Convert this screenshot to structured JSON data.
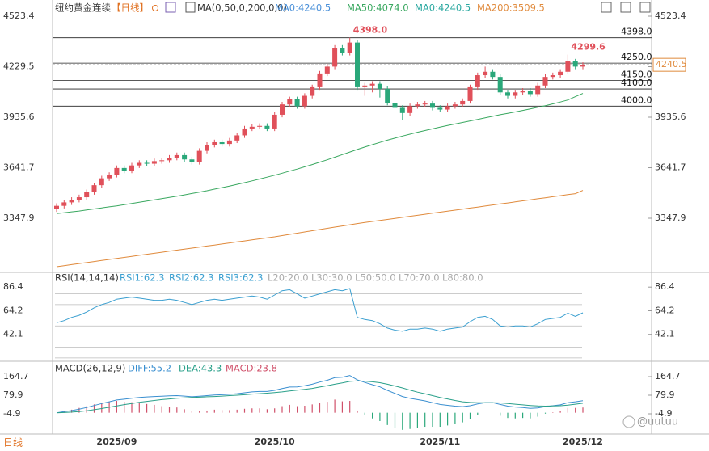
{
  "chart_data": {
    "type": "candlestick",
    "title": "纽约黄金连续",
    "period_tag": "【日线】",
    "indicator": "MA(0,50,0,200,0,0)",
    "header_items": [
      {
        "name": "MA0:4240.5",
        "color": "#4a90d9"
      },
      {
        "name": "MA0:4240.5",
        "color": "#2aa8a0"
      }
    ],
    "period_label": "日线",
    "watermark": "@uutuu",
    "up_color": "#e0505a",
    "down_color": "#2aa87a",
    "categories": [
      null,
      null,
      null,
      null,
      null,
      null,
      null,
      null,
      "2025/09",
      null,
      null,
      null,
      null,
      null,
      null,
      null,
      null,
      null,
      null,
      null,
      null,
      null,
      null,
      null,
      null,
      null,
      null,
      null,
      null,
      "2025/10",
      null,
      null,
      null,
      null,
      null,
      null,
      null,
      null,
      null,
      null,
      null,
      null,
      null,
      null,
      null,
      null,
      null,
      null,
      null,
      null,
      null,
      "2025/11",
      null,
      null,
      null,
      null,
      null,
      null,
      null,
      null,
      null,
      null,
      null,
      null,
      null,
      null,
      null,
      null,
      null,
      null,
      "2025/12"
    ],
    "open": [
      3400,
      3420,
      3440,
      3455,
      3470,
      3500,
      3540,
      3580,
      3600,
      3640,
      3625,
      3655,
      3670,
      3665,
      3680,
      3685,
      3700,
      3715,
      3690,
      3675,
      3740,
      3775,
      3790,
      3780,
      3800,
      3830,
      3870,
      3880,
      3885,
      3870,
      3950,
      4010,
      4040,
      4000,
      4060,
      4110,
      4190,
      4230,
      4340,
      4310,
      4370,
      4110,
      4120,
      4130,
      4100,
      4020,
      3990,
      3960,
      4000,
      4010,
      4015,
      3990,
      3980,
      4000,
      4010,
      4030,
      4110,
      4180,
      4200,
      4170,
      4080,
      4060,
      4080,
      4090,
      4070,
      4120,
      4170,
      4180,
      4200,
      4260,
      4230
    ],
    "high": [
      3435,
      3455,
      3470,
      3485,
      3515,
      3555,
      3595,
      3615,
      3655,
      3655,
      3670,
      3685,
      3685,
      3695,
      3700,
      3715,
      3730,
      3730,
      3705,
      3755,
      3790,
      3805,
      3805,
      3815,
      3845,
      3885,
      3895,
      3900,
      3900,
      3965,
      4025,
      4055,
      4055,
      4075,
      4125,
      4205,
      4245,
      4355,
      4355,
      4398.0,
      4385,
      4135,
      4145,
      4145,
      4115,
      4035,
      4005,
      4015,
      4025,
      4030,
      4030,
      4005,
      4015,
      4025,
      4045,
      4125,
      4195,
      4230,
      4215,
      4185,
      4095,
      4095,
      4105,
      4105,
      4135,
      4185,
      4195,
      4215,
      4299.6,
      4275,
      4255
    ],
    "low": [
      3385,
      3405,
      3425,
      3440,
      3455,
      3485,
      3525,
      3565,
      3585,
      3610,
      3610,
      3640,
      3650,
      3650,
      3665,
      3670,
      3685,
      3675,
      3660,
      3660,
      3725,
      3760,
      3765,
      3765,
      3785,
      3815,
      3855,
      3865,
      3855,
      3855,
      3935,
      3995,
      3985,
      3985,
      4045,
      4095,
      4175,
      4215,
      4295,
      4295,
      4095,
      4060,
      4080,
      4050,
      4005,
      3975,
      3920,
      3945,
      3985,
      3995,
      3975,
      3965,
      3965,
      3985,
      3995,
      4015,
      4095,
      4165,
      4155,
      4065,
      4045,
      4045,
      4065,
      4055,
      4055,
      4105,
      4155,
      4165,
      4185,
      4215,
      4215
    ],
    "close": [
      3420,
      3440,
      3455,
      3470,
      3500,
      3540,
      3580,
      3600,
      3640,
      3625,
      3655,
      3670,
      3665,
      3680,
      3685,
      3700,
      3715,
      3690,
      3675,
      3740,
      3775,
      3790,
      3780,
      3800,
      3830,
      3870,
      3880,
      3885,
      3870,
      3950,
      4010,
      4040,
      4000,
      4060,
      4110,
      4190,
      4230,
      4340,
      4310,
      4370,
      4110,
      4120,
      4130,
      4100,
      4020,
      3990,
      3960,
      4000,
      4010,
      4015,
      3990,
      3980,
      4000,
      4010,
      4030,
      4110,
      4180,
      4200,
      4170,
      4080,
      4060,
      4080,
      4090,
      4070,
      4120,
      4170,
      4180,
      4200,
      4260,
      4230,
      4240.5
    ],
    "high_labels": [
      null,
      null,
      null,
      null,
      null,
      null,
      null,
      null,
      null,
      null,
      null,
      null,
      null,
      null,
      null,
      null,
      null,
      null,
      null,
      null,
      null,
      null,
      null,
      null,
      null,
      null,
      null,
      null,
      null,
      null,
      null,
      null,
      null,
      null,
      null,
      null,
      null,
      null,
      null,
      "4398.0",
      null,
      null,
      null,
      null,
      null,
      null,
      null,
      null,
      null,
      null,
      null,
      null,
      null,
      null,
      null,
      null,
      null,
      null,
      null,
      null,
      null,
      null,
      null,
      null,
      null,
      null,
      null,
      null,
      "4299.6",
      null,
      null
    ],
    "series": [
      {
        "name": "MA50:4074.0",
        "color": "#3aa860",
        "values": [
          3375,
          3380,
          3385,
          3390,
          3396,
          3402,
          3408,
          3414,
          3420,
          3427,
          3434,
          3441,
          3448,
          3455,
          3462,
          3469,
          3476,
          3484,
          3492,
          3500,
          3508,
          3517,
          3526,
          3535,
          3545,
          3555,
          3565,
          3576,
          3587,
          3598,
          3610,
          3622,
          3634,
          3647,
          3660,
          3674,
          3688,
          3703,
          3718,
          3733,
          3748,
          3762,
          3776,
          3789,
          3802,
          3814,
          3826,
          3837,
          3848,
          3858,
          3868,
          3878,
          3887,
          3896,
          3905,
          3914,
          3923,
          3932,
          3941,
          3950,
          3958,
          3966,
          3975,
          3984,
          3993,
          4003,
          4013,
          4024,
          4036,
          4055,
          4074.0
        ]
      },
      {
        "name": "MA200:3509.5",
        "color": "#e08a3c",
        "values": [
          3066,
          3072,
          3078,
          3084,
          3090,
          3096,
          3102,
          3108,
          3114,
          3120,
          3126,
          3132,
          3138,
          3144,
          3150,
          3156,
          3162,
          3168,
          3174,
          3180,
          3186,
          3192,
          3198,
          3204,
          3210,
          3216,
          3222,
          3228,
          3234,
          3240,
          3247,
          3254,
          3261,
          3268,
          3275,
          3282,
          3289,
          3296,
          3303,
          3310,
          3317,
          3323,
          3329,
          3335,
          3341,
          3347,
          3353,
          3359,
          3365,
          3371,
          3377,
          3383,
          3389,
          3395,
          3401,
          3407,
          3413,
          3419,
          3425,
          3431,
          3437,
          3443,
          3449,
          3455,
          3461,
          3467,
          3473,
          3479,
          3485,
          3491,
          3509.5
        ]
      }
    ],
    "ylim": [
      3042.3,
      4570.4
    ],
    "yticks": [
      3347.9,
      3641.7,
      3935.6,
      4229.5,
      4523.4
    ],
    "levels": [
      {
        "value": 4398,
        "label": "4398.0"
      },
      {
        "value": 4250,
        "label": "4250.0"
      },
      {
        "value": 4150,
        "label": "4150.0"
      },
      {
        "value": 4100,
        "label": "4100.0"
      },
      {
        "value": 4000,
        "label": "4000.0"
      }
    ],
    "current_price": 4240.5,
    "current_color": "#e08a3c",
    "rsi": {
      "title": "RSI(14,14,14)",
      "legend": [
        "RSI1:62.3",
        "RSI2:62.3",
        "RSI3:62.3"
      ],
      "color": "#3a9fd0",
      "levels": [
        {
          "value": 20,
          "label": "L20:20.0"
        },
        {
          "value": 30,
          "label": "L30:30.0"
        },
        {
          "value": 50,
          "label": "L50:50.0"
        },
        {
          "value": 70,
          "label": "L70:70.0"
        },
        {
          "value": 80,
          "label": "L80:80.0"
        }
      ],
      "values": [
        53,
        55,
        58,
        60,
        63,
        67,
        70,
        72,
        75,
        76,
        77,
        76,
        75,
        74,
        74,
        75,
        74,
        72,
        70,
        72,
        74,
        75,
        74,
        75,
        76,
        77,
        78,
        77,
        75,
        79,
        83,
        84,
        80,
        76,
        78,
        80,
        82,
        84,
        83,
        85,
        58,
        56,
        55,
        52,
        48,
        46,
        45,
        47,
        47,
        48,
        47,
        45,
        47,
        48,
        49,
        54,
        58,
        59,
        56,
        50,
        49,
        50,
        50,
        49,
        52,
        56,
        57,
        58,
        62,
        59,
        62.3
      ],
      "ylim": [
        18.4,
        97.9
      ],
      "yticks": [
        42.1,
        64.2,
        86.4
      ]
    },
    "macd": {
      "title": "MACD(26,12,9)",
      "series": [
        {
          "name": "DIFF:55.2",
          "color": "#3a8fd0",
          "values": [
            0,
            5,
            10,
            16,
            24,
            33,
            42,
            50,
            58,
            62,
            66,
            70,
            72,
            74,
            75,
            77,
            78,
            76,
            73,
            75,
            78,
            81,
            82,
            84,
            87,
            91,
            95,
            97,
            97,
            102,
            110,
            117,
            118,
            123,
            130,
            140,
            148,
            160,
            162,
            170,
            150,
            138,
            128,
            118,
            102,
            88,
            74,
            66,
            60,
            54,
            46,
            38,
            34,
            30,
            28,
            32,
            40,
            46,
            46,
            38,
            30,
            26,
            24,
            20,
            22,
            28,
            32,
            36,
            46,
            50,
            55.2
          ]
        },
        {
          "name": "DEA:43.3",
          "color": "#2aa08a",
          "values": [
            0,
            1,
            3,
            5,
            9,
            14,
            19,
            25,
            31,
            37,
            42,
            48,
            52,
            56,
            60,
            63,
            66,
            68,
            70,
            71,
            73,
            74,
            76,
            78,
            80,
            82,
            85,
            87,
            89,
            92,
            95,
            99,
            103,
            107,
            111,
            117,
            123,
            130,
            136,
            143,
            145,
            144,
            141,
            137,
            130,
            122,
            113,
            103,
            94,
            86,
            78,
            70,
            63,
            56,
            50,
            47,
            46,
            46,
            46,
            45,
            42,
            39,
            36,
            33,
            31,
            30,
            31,
            32,
            35,
            39,
            43.3
          ]
        }
      ],
      "histogram": {
        "name": "MACD:23.8",
        "color": "#d0506a",
        "values": [
          0,
          8,
          14,
          22,
          30,
          38,
          46,
          50,
          54,
          50,
          48,
          44,
          40,
          36,
          30,
          28,
          24,
          16,
          6,
          8,
          10,
          14,
          12,
          12,
          14,
          18,
          20,
          20,
          16,
          20,
          30,
          36,
          30,
          32,
          38,
          46,
          50,
          60,
          52,
          54,
          10,
          -12,
          -26,
          -38,
          -56,
          -68,
          -78,
          -74,
          -68,
          -64,
          -64,
          -64,
          -58,
          -52,
          -44,
          -30,
          -12,
          0,
          0,
          -14,
          -24,
          -26,
          -24,
          -26,
          -18,
          -4,
          2,
          8,
          22,
          22,
          23.8
        ]
      },
      "ylim": [
        -89.7,
        223.7
      ],
      "yticks": [
        -4.9,
        79.9,
        164.7
      ]
    }
  }
}
